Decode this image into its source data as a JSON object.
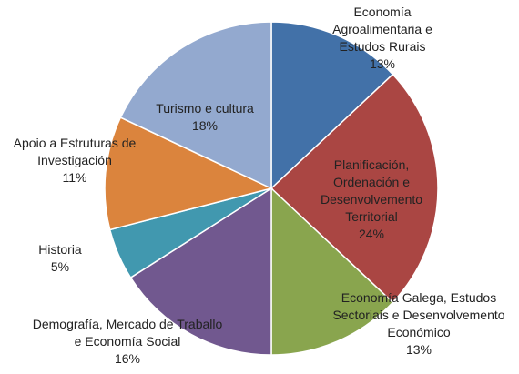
{
  "chart_data": {
    "type": "pie",
    "categories": [
      "Economía Agroalimentaria e Estudos Rurais",
      "Planificación, Ordenación e Desenvolvemento Territorial",
      "Economía Galega, Estudos Sectoriais e Desenvolvemento Económico",
      "Demografía, Mercado de Traballo e Economía Social",
      "Historia",
      "Apoio a Estruturas de Investigación",
      "Turismo e cultura"
    ],
    "values": [
      13,
      24,
      13,
      16,
      5,
      11,
      18
    ],
    "value_labels": [
      "13%",
      "24%",
      "13%",
      "16%",
      "5%",
      "11%",
      "18%"
    ],
    "colors": [
      "#4271a8",
      "#aa4643",
      "#89a54e",
      "#71588f",
      "#4198af",
      "#db843d",
      "#93a9cf"
    ]
  }
}
